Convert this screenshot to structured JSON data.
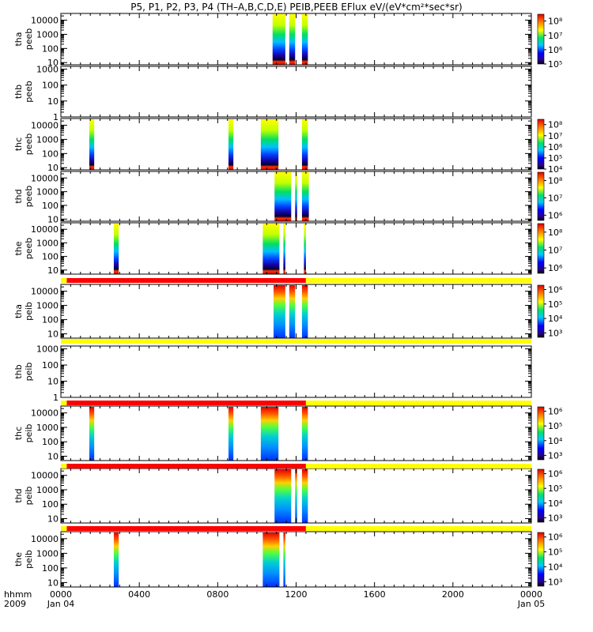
{
  "title": "P5, P1, P2, P3, P4 (TH–A,B,C,D,E) PEIB,PEEB EFlux eV/(eV*cm²*sec*sr)",
  "chart_data": {
    "type": "heatmap",
    "title": "P5, P1, P2, P3, P4 (TH–A,B,C,D,E) PEIB,PEEB EFlux eV/(eV*cm²*sec*sr)",
    "x_axis": {
      "label_line1": "hhmm",
      "label_line2": "2009",
      "range_hours": [
        0,
        24
      ],
      "tick_labels": [
        {
          "t": 0,
          "top": "0000",
          "bottom": "Jan 04"
        },
        {
          "t": 4,
          "top": "0400",
          "bottom": ""
        },
        {
          "t": 8,
          "top": "0800",
          "bottom": ""
        },
        {
          "t": 12,
          "top": "1200",
          "bottom": ""
        },
        {
          "t": 16,
          "top": "1600",
          "bottom": ""
        },
        {
          "t": 20,
          "top": "2000",
          "bottom": ""
        },
        {
          "t": 24,
          "top": "0000",
          "bottom": "Jan 05"
        }
      ]
    },
    "panels": [
      {
        "label1": "tha",
        "label2": "peeb",
        "ylim": [
          7,
          30000
        ],
        "yticks": [
          "10",
          "100",
          "1000",
          "10000"
        ],
        "colorbar": {
          "scale": "log",
          "range": [
            100000.0,
            300000000.0
          ],
          "ticks": [
            "10⁵",
            "10⁶",
            "10⁷",
            "10⁸"
          ]
        },
        "segments": [
          [
            10.8,
            11.45
          ],
          [
            11.65,
            11.95
          ],
          [
            12.3,
            12.6
          ]
        ]
      },
      {
        "label1": "thb",
        "label2": "peeb",
        "ylim": [
          1,
          1500
        ],
        "yticks": [
          "1",
          "10",
          "100",
          "1000"
        ],
        "colorbar": null,
        "segments": []
      },
      {
        "label1": "thc",
        "label2": "peeb",
        "ylim": [
          7,
          30000
        ],
        "yticks": [
          "10",
          "100",
          "1000",
          "10000"
        ],
        "colorbar": {
          "scale": "log",
          "range": [
            10000.0,
            300000000.0
          ],
          "ticks": [
            "10⁴",
            "10⁵",
            "10⁶",
            "10⁷",
            "10⁸"
          ]
        },
        "segments": [
          [
            1.45,
            1.7
          ],
          [
            8.55,
            8.8
          ],
          [
            10.2,
            11.1
          ],
          [
            12.3,
            12.6
          ]
        ]
      },
      {
        "label1": "thd",
        "label2": "peeb",
        "ylim": [
          7,
          30000
        ],
        "yticks": [
          "10",
          "100",
          "1000",
          "10000"
        ],
        "colorbar": {
          "scale": "log",
          "range": [
            500000.0,
            300000000.0
          ],
          "ticks": [
            "10⁶",
            "10⁷",
            "10⁸"
          ]
        },
        "segments": [
          [
            10.9,
            11.75
          ],
          [
            11.95,
            12.05
          ],
          [
            12.3,
            12.65
          ]
        ]
      },
      {
        "label1": "the",
        "label2": "peeb",
        "ylim": [
          5,
          30000
        ],
        "yticks": [
          "10",
          "100",
          "1000",
          "10000"
        ],
        "colorbar": {
          "scale": "log",
          "range": [
            500000.0,
            300000000.0
          ],
          "ticks": [
            "10⁶",
            "10⁷",
            "10⁸"
          ]
        },
        "segments": [
          [
            2.7,
            2.95
          ],
          [
            10.3,
            11.15
          ],
          [
            11.35,
            11.45
          ],
          [
            12.4,
            12.5
          ]
        ]
      },
      {
        "label1": "tha",
        "label2": "peib",
        "ylim": [
          5,
          30000
        ],
        "yticks": [
          "10",
          "100",
          "1000",
          "10000"
        ],
        "colorbar": {
          "scale": "log",
          "range": [
            500.0,
            2000000.0
          ],
          "ticks": [
            "10³",
            "10⁴",
            "10⁵",
            "10⁶"
          ]
        },
        "segments": [
          [
            10.85,
            11.45
          ],
          [
            11.65,
            11.95
          ],
          [
            12.3,
            12.6
          ]
        ]
      },
      {
        "label1": "thb",
        "label2": "peib",
        "ylim": [
          1,
          1500
        ],
        "yticks": [
          "1",
          "10",
          "100",
          "1000"
        ],
        "colorbar": null,
        "segments": []
      },
      {
        "label1": "thc",
        "label2": "peib",
        "ylim": [
          5,
          30000
        ],
        "yticks": [
          "10",
          "100",
          "1000",
          "10000"
        ],
        "colorbar": {
          "scale": "log",
          "range": [
            500.0,
            2000000.0
          ],
          "ticks": [
            "10³",
            "10⁴",
            "10⁵",
            "10⁶"
          ]
        },
        "segments": [
          [
            1.45,
            1.7
          ],
          [
            8.55,
            8.8
          ],
          [
            10.2,
            11.1
          ],
          [
            12.3,
            12.6
          ]
        ]
      },
      {
        "label1": "thd",
        "label2": "peib",
        "ylim": [
          5,
          30000
        ],
        "yticks": [
          "10",
          "100",
          "1000",
          "10000"
        ],
        "colorbar": {
          "scale": "log",
          "range": [
            500.0,
            2000000.0
          ],
          "ticks": [
            "10³",
            "10⁴",
            "10⁵",
            "10⁶"
          ]
        },
        "segments": [
          [
            10.9,
            11.75
          ],
          [
            11.95,
            12.05
          ],
          [
            12.3,
            12.6
          ]
        ]
      },
      {
        "label1": "the",
        "label2": "peib",
        "ylim": [
          5,
          30000
        ],
        "yticks": [
          "10",
          "100",
          "1000",
          "10000"
        ],
        "colorbar": {
          "scale": "log",
          "range": [
            500.0,
            2000000.0
          ],
          "ticks": [
            "10³",
            "10⁴",
            "10⁵",
            "10⁶"
          ]
        },
        "segments": [
          [
            2.7,
            2.95
          ],
          [
            10.3,
            11.15
          ],
          [
            11.35,
            11.45
          ]
        ]
      }
    ],
    "mode_bars": [
      {
        "before_panel": 5,
        "segments": [
          {
            "from": 0,
            "to": 0.3,
            "color": "#ffff00"
          },
          {
            "from": 0.3,
            "to": 12.5,
            "color": "#ff0000"
          },
          {
            "from": 12.5,
            "to": 24,
            "color": "#ffff00"
          }
        ]
      },
      {
        "before_panel": 6,
        "segments": [
          {
            "from": 0,
            "to": 24,
            "color": "#ffff00"
          }
        ]
      },
      {
        "before_panel": 7,
        "segments": [
          {
            "from": 0,
            "to": 0.3,
            "color": "#ffff00"
          },
          {
            "from": 0.3,
            "to": 12.5,
            "color": "#ff0000"
          },
          {
            "from": 12.5,
            "to": 24,
            "color": "#ffff00"
          }
        ]
      },
      {
        "before_panel": 8,
        "segments": [
          {
            "from": 0,
            "to": 0.3,
            "color": "#ffff00"
          },
          {
            "from": 0.3,
            "to": 12.5,
            "color": "#ff0000"
          },
          {
            "from": 12.5,
            "to": 24,
            "color": "#ffff00"
          }
        ]
      },
      {
        "before_panel": 9,
        "segments": [
          {
            "from": 0,
            "to": 0.3,
            "color": "#ffff00"
          },
          {
            "from": 0.3,
            "to": 12.5,
            "color": "#ff0000"
          },
          {
            "from": 12.5,
            "to": 24,
            "color": "#ffff00"
          }
        ]
      }
    ]
  }
}
